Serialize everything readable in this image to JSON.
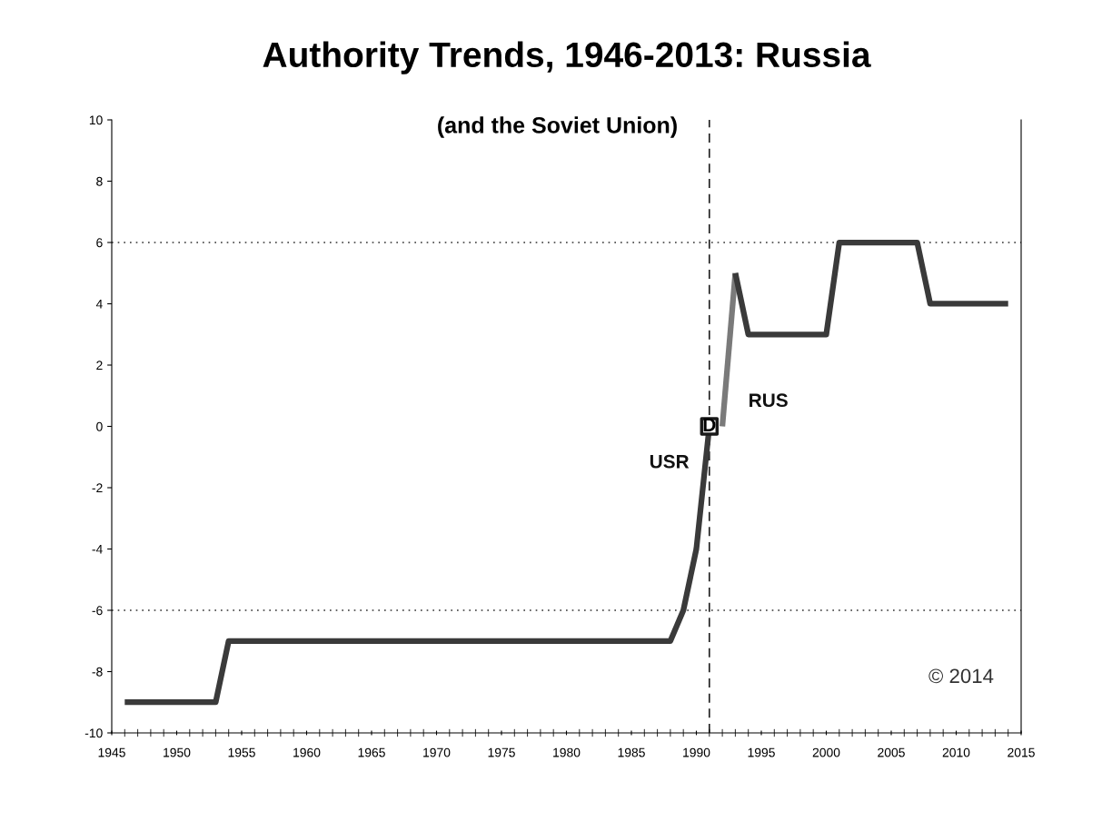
{
  "chart_data": {
    "type": "line",
    "title": "Authority Trends, 1946-2013: Russia",
    "subtitle": "(and the Soviet Union)",
    "series": [
      {
        "color": "#3a3a3a",
        "x": [
          1946,
          1953,
          1954,
          1988,
          1989,
          1990,
          1991
        ],
        "values": [
          -9,
          -9,
          -7,
          -7,
          -6,
          -4,
          0
        ]
      },
      {
        "color": "#7a7a7a",
        "x": [
          1992,
          1993
        ],
        "values": [
          0,
          5
        ]
      },
      {
        "color": "#3a3a3a",
        "x": [
          1993,
          1994,
          2000,
          2001,
          2007,
          2008,
          2014
        ],
        "values": [
          5,
          3,
          3,
          6,
          6,
          4,
          4
        ]
      },
      {
        "type": "scatter",
        "marker": "square",
        "color": "#1a1a1a",
        "x": [
          1991
        ],
        "values": [
          0
        ]
      }
    ],
    "annotations": [
      "USR",
      "RUS",
      {
        "text": "D",
        "x": 1991,
        "y": 0
      },
      "© 2014"
    ],
    "ref_lines": [
      {
        "axis": "y",
        "value": 6,
        "line_style": "dotted",
        "color": "#333333"
      },
      {
        "axis": "y",
        "value": -6,
        "line_style": "dotted",
        "color": "#333333"
      },
      {
        "axis": "x",
        "value": 1991,
        "line_style": "dashed",
        "color": "#222222"
      }
    ],
    "xlim": [
      1945,
      2015
    ],
    "xticks": [
      1945,
      1950,
      1955,
      1960,
      1965,
      1970,
      1975,
      1980,
      1985,
      1990,
      1995,
      2000,
      2005,
      2010,
      2015
    ],
    "ylim": [
      -10,
      10
    ],
    "yticks": [
      -10,
      -8,
      -6,
      -4,
      -2,
      0,
      2,
      4,
      6,
      8,
      10
    ],
    "grid": false,
    "legend": false,
    "line_style": "solid"
  }
}
